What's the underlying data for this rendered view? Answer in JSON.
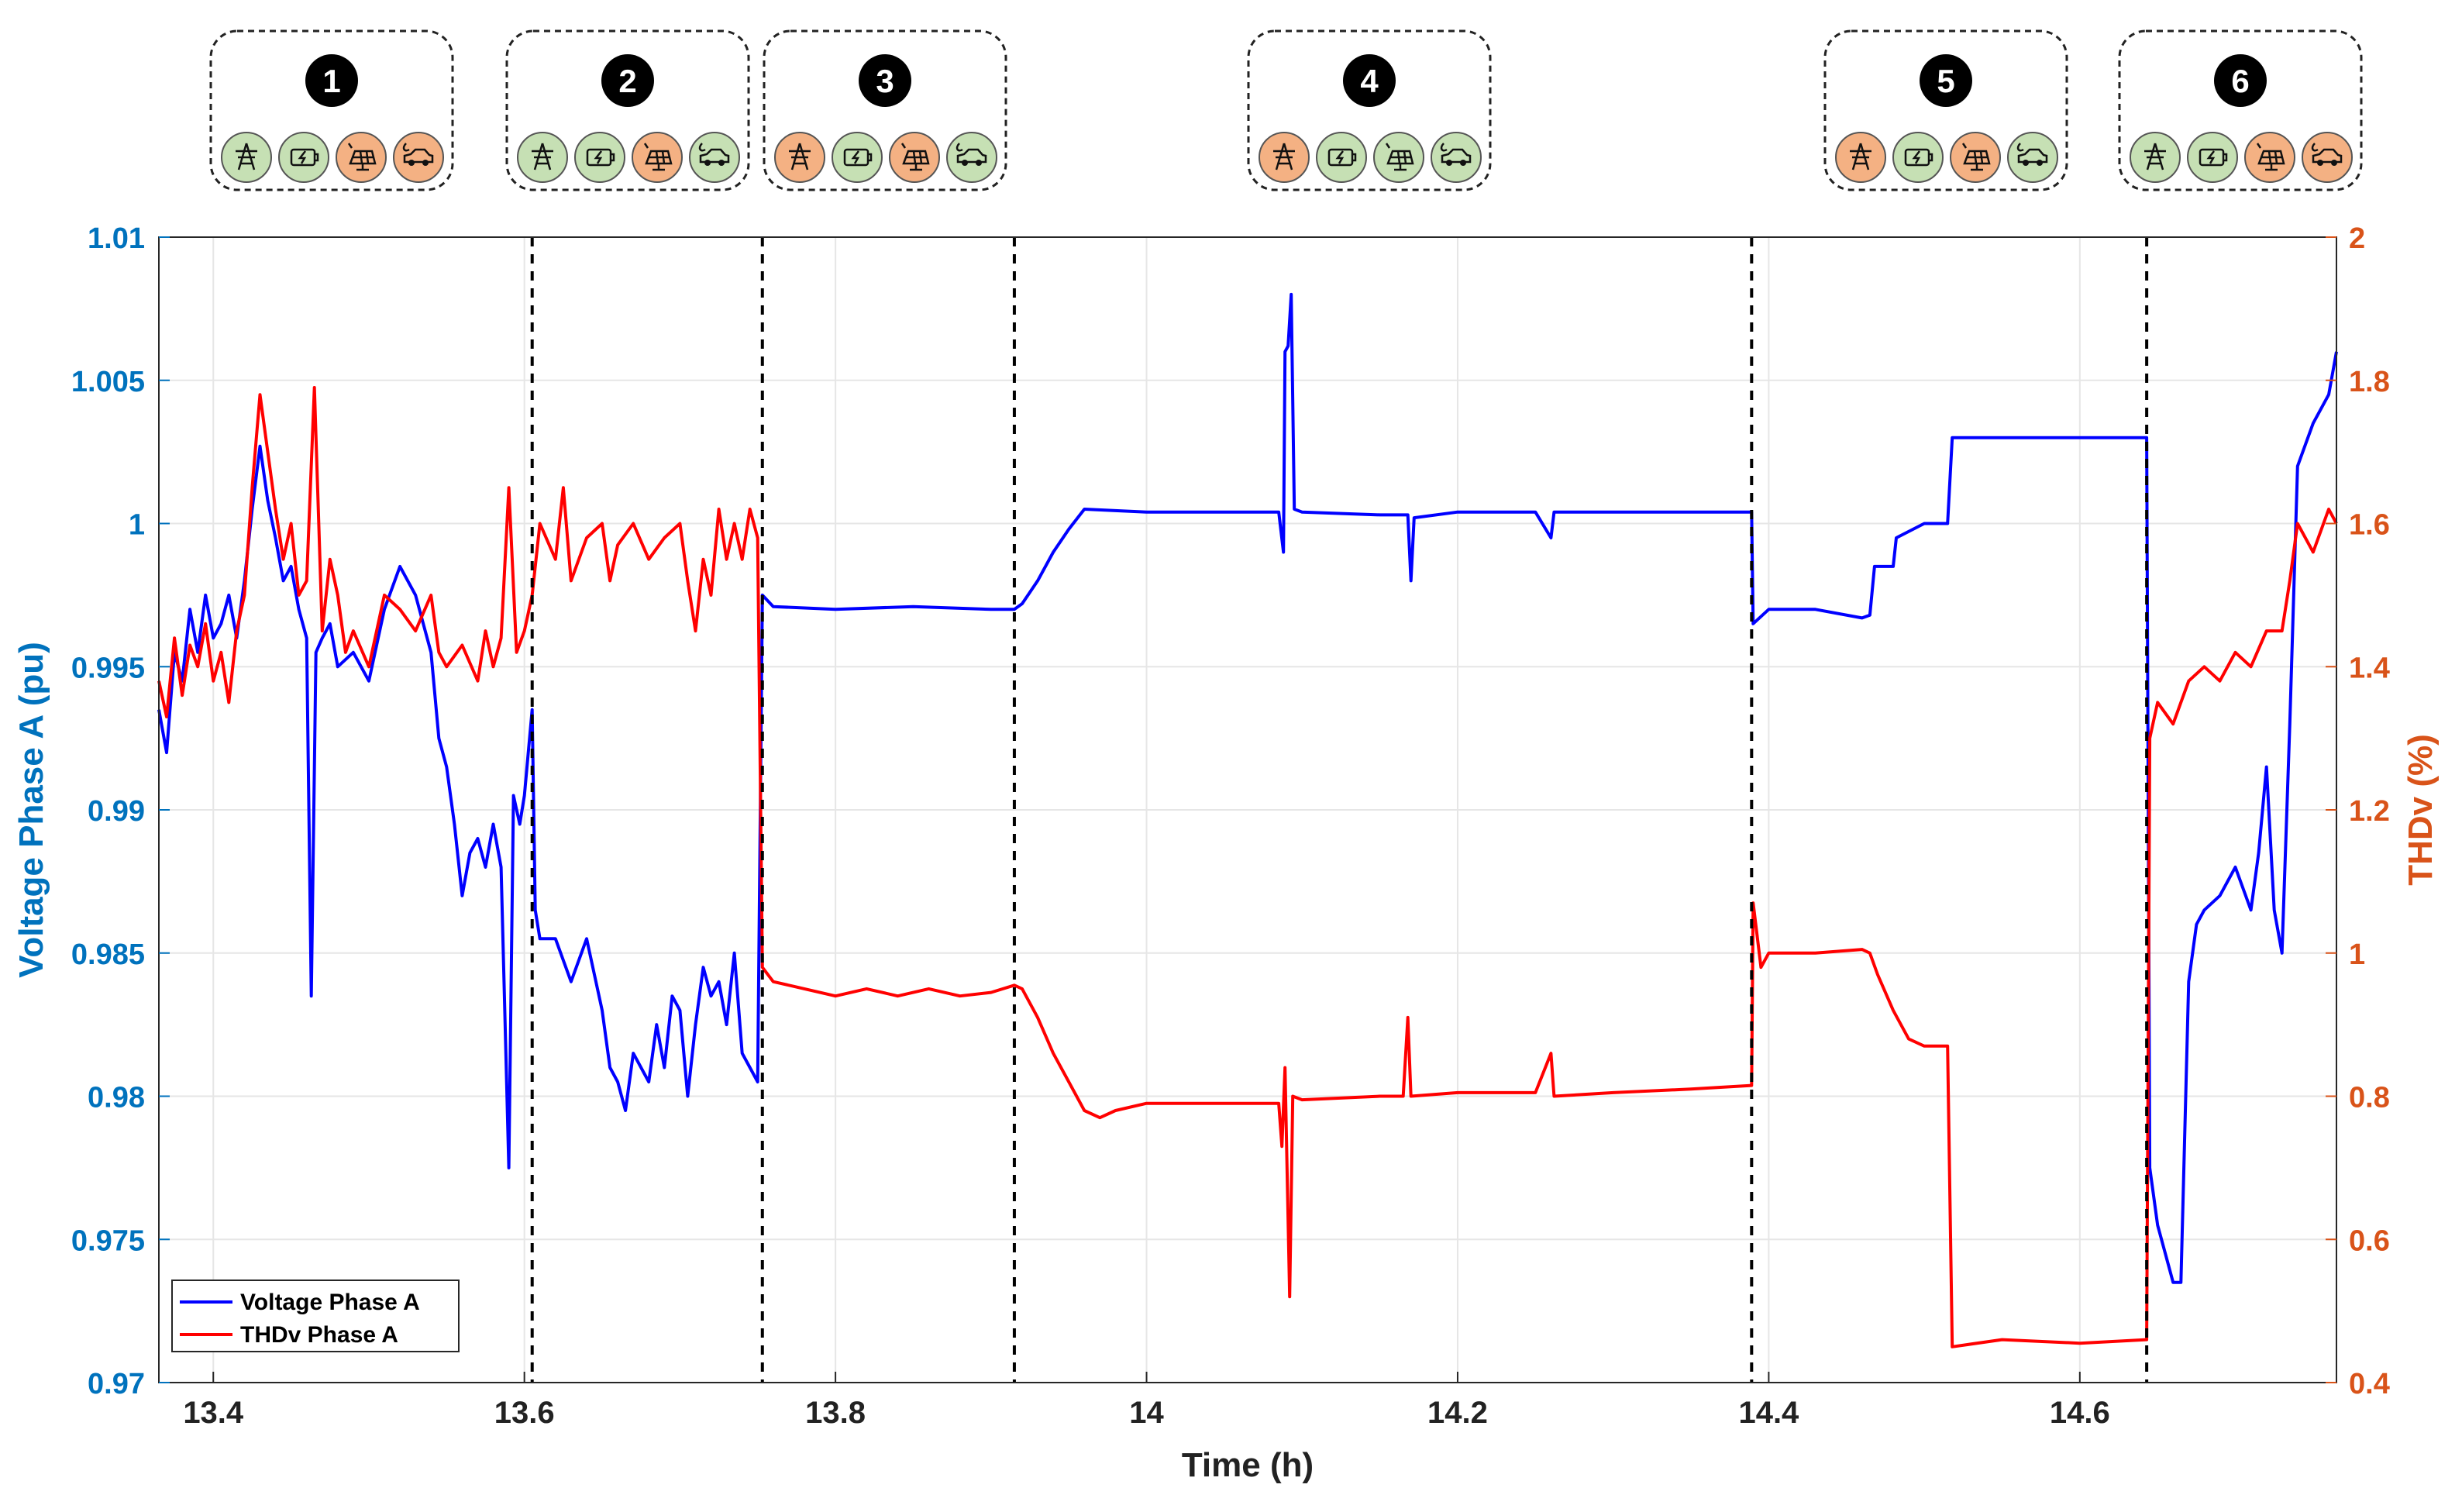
{
  "colors": {
    "voltage": "#0000ff",
    "thdv": "#ff0000",
    "left_axis": "#0072bd",
    "right_axis": "#d95319",
    "source_on": "#c6e0b4",
    "source_off": "#f4b183"
  },
  "scenarios": [
    {
      "number": "1",
      "grid": "on",
      "battery": "on",
      "pv": "off",
      "ev": "off"
    },
    {
      "number": "2",
      "grid": "on",
      "battery": "on",
      "pv": "off",
      "ev": "on"
    },
    {
      "number": "3",
      "grid": "off",
      "battery": "on",
      "pv": "off",
      "ev": "on"
    },
    {
      "number": "4",
      "grid": "off",
      "battery": "on",
      "pv": "on",
      "ev": "on"
    },
    {
      "number": "5",
      "grid": "off",
      "battery": "on",
      "pv": "off",
      "ev": "on"
    },
    {
      "number": "6",
      "grid": "on",
      "battery": "on",
      "pv": "off",
      "ev": "off"
    }
  ],
  "icons": [
    "transmission-tower-icon",
    "battery-charging-icon",
    "solar-panel-icon",
    "ev-charging-car-icon"
  ],
  "chart_data": {
    "type": "line",
    "title": "",
    "xlabel": "Time (h)",
    "ylabel_left": "Voltage Phase A (pu)",
    "ylabel_right": "THDv (%)",
    "xlim": [
      13.365,
      14.765
    ],
    "ylim_left": [
      0.97,
      1.01
    ],
    "ylim_right": [
      0.4,
      2.0
    ],
    "x_ticks": [
      "13.4",
      "13.6",
      "13.8",
      "14",
      "14.2",
      "14.4",
      "14.6"
    ],
    "y_ticks_left": [
      "0.97",
      "0.975",
      "0.98",
      "0.985",
      "0.99",
      "0.995",
      "1",
      "1.005",
      "1.01"
    ],
    "y_ticks_right": [
      "0.4",
      "0.6",
      "0.8",
      "1",
      "1.2",
      "1.4",
      "1.6",
      "1.8",
      "2"
    ],
    "grid": true,
    "legend_position": "bottom-left",
    "event_lines_x": [
      13.605,
      13.753,
      13.915,
      14.389,
      14.643
    ],
    "series": [
      {
        "name": "Voltage Phase A",
        "axis": "left",
        "points": [
          [
            13.365,
            0.9935
          ],
          [
            13.37,
            0.992
          ],
          [
            13.375,
            0.9955
          ],
          [
            13.38,
            0.9945
          ],
          [
            13.385,
            0.997
          ],
          [
            13.39,
            0.9955
          ],
          [
            13.395,
            0.9975
          ],
          [
            13.4,
            0.996
          ],
          [
            13.405,
            0.9965
          ],
          [
            13.41,
            0.9975
          ],
          [
            13.415,
            0.996
          ],
          [
            13.42,
            0.998
          ],
          [
            13.425,
            1.0005
          ],
          [
            13.43,
            1.0027
          ],
          [
            13.435,
            1.0008
          ],
          [
            13.44,
            0.9995
          ],
          [
            13.445,
            0.998
          ],
          [
            13.45,
            0.9985
          ],
          [
            13.455,
            0.997
          ],
          [
            13.46,
            0.996
          ],
          [
            13.463,
            0.9835
          ],
          [
            13.466,
            0.9955
          ],
          [
            13.47,
            0.996
          ],
          [
            13.475,
            0.9965
          ],
          [
            13.48,
            0.995
          ],
          [
            13.49,
            0.9955
          ],
          [
            13.5,
            0.9945
          ],
          [
            13.51,
            0.997
          ],
          [
            13.52,
            0.9985
          ],
          [
            13.53,
            0.9975
          ],
          [
            13.54,
            0.9955
          ],
          [
            13.545,
            0.9925
          ],
          [
            13.55,
            0.9915
          ],
          [
            13.555,
            0.9895
          ],
          [
            13.56,
            0.987
          ],
          [
            13.565,
            0.9885
          ],
          [
            13.57,
            0.989
          ],
          [
            13.575,
            0.988
          ],
          [
            13.58,
            0.9895
          ],
          [
            13.585,
            0.988
          ],
          [
            13.59,
            0.9775
          ],
          [
            13.593,
            0.9905
          ],
          [
            13.597,
            0.9895
          ],
          [
            13.6,
            0.9905
          ],
          [
            13.605,
            0.9935
          ],
          [
            13.607,
            0.9865
          ],
          [
            13.61,
            0.9855
          ],
          [
            13.62,
            0.9855
          ],
          [
            13.63,
            0.984
          ],
          [
            13.64,
            0.9855
          ],
          [
            13.65,
            0.983
          ],
          [
            13.655,
            0.981
          ],
          [
            13.66,
            0.9805
          ],
          [
            13.665,
            0.9795
          ],
          [
            13.67,
            0.9815
          ],
          [
            13.68,
            0.9805
          ],
          [
            13.685,
            0.9825
          ],
          [
            13.69,
            0.981
          ],
          [
            13.695,
            0.9835
          ],
          [
            13.7,
            0.983
          ],
          [
            13.705,
            0.98
          ],
          [
            13.71,
            0.9825
          ],
          [
            13.715,
            0.9845
          ],
          [
            13.72,
            0.9835
          ],
          [
            13.725,
            0.984
          ],
          [
            13.73,
            0.9825
          ],
          [
            13.735,
            0.985
          ],
          [
            13.74,
            0.9815
          ],
          [
            13.745,
            0.981
          ],
          [
            13.75,
            0.9805
          ],
          [
            13.753,
            0.9975
          ],
          [
            13.76,
            0.9971
          ],
          [
            13.8,
            0.997
          ],
          [
            13.85,
            0.9971
          ],
          [
            13.9,
            0.997
          ],
          [
            13.915,
            0.997
          ],
          [
            13.92,
            0.9972
          ],
          [
            13.93,
            0.998
          ],
          [
            13.94,
            0.999
          ],
          [
            13.95,
            0.9998
          ],
          [
            13.96,
            1.0005
          ],
          [
            14.0,
            1.0004
          ],
          [
            14.05,
            1.0004
          ],
          [
            14.085,
            1.0004
          ],
          [
            14.088,
            0.999
          ],
          [
            14.089,
            1.006
          ],
          [
            14.091,
            1.0062
          ],
          [
            14.093,
            1.008
          ],
          [
            14.095,
            1.0005
          ],
          [
            14.1,
            1.0004
          ],
          [
            14.15,
            1.0003
          ],
          [
            14.168,
            1.0003
          ],
          [
            14.17,
            0.998
          ],
          [
            14.172,
            1.0002
          ],
          [
            14.2,
            1.0004
          ],
          [
            14.25,
            1.0004
          ],
          [
            14.26,
            0.9995
          ],
          [
            14.262,
            1.0004
          ],
          [
            14.3,
            1.0004
          ],
          [
            14.35,
            1.0004
          ],
          [
            14.389,
            1.0004
          ],
          [
            14.39,
            0.9965
          ],
          [
            14.4,
            0.997
          ],
          [
            14.43,
            0.997
          ],
          [
            14.46,
            0.9967
          ],
          [
            14.465,
            0.9968
          ],
          [
            14.468,
            0.9985
          ],
          [
            14.48,
            0.9985
          ],
          [
            14.482,
            0.9995
          ],
          [
            14.5,
            1.0
          ],
          [
            14.515,
            1.0
          ],
          [
            14.518,
            1.003
          ],
          [
            14.55,
            1.003
          ],
          [
            14.6,
            1.003
          ],
          [
            14.643,
            1.003
          ],
          [
            14.645,
            0.9775
          ],
          [
            14.65,
            0.9755
          ],
          [
            14.655,
            0.9745
          ],
          [
            14.66,
            0.9735
          ],
          [
            14.665,
            0.9735
          ],
          [
            14.67,
            0.984
          ],
          [
            14.675,
            0.986
          ],
          [
            14.68,
            0.9865
          ],
          [
            14.69,
            0.987
          ],
          [
            14.7,
            0.988
          ],
          [
            14.71,
            0.9865
          ],
          [
            14.715,
            0.9885
          ],
          [
            14.72,
            0.9915
          ],
          [
            14.725,
            0.9865
          ],
          [
            14.73,
            0.985
          ],
          [
            14.735,
            0.993
          ],
          [
            14.74,
            1.002
          ],
          [
            14.75,
            1.0035
          ],
          [
            14.76,
            1.0045
          ],
          [
            14.765,
            1.006
          ]
        ]
      },
      {
        "name": "THDv Phase A",
        "axis": "right",
        "points": [
          [
            13.365,
            1.38
          ],
          [
            13.37,
            1.33
          ],
          [
            13.375,
            1.44
          ],
          [
            13.38,
            1.36
          ],
          [
            13.385,
            1.43
          ],
          [
            13.39,
            1.4
          ],
          [
            13.395,
            1.46
          ],
          [
            13.4,
            1.38
          ],
          [
            13.405,
            1.42
          ],
          [
            13.41,
            1.35
          ],
          [
            13.415,
            1.45
          ],
          [
            13.42,
            1.5
          ],
          [
            13.425,
            1.65
          ],
          [
            13.43,
            1.78
          ],
          [
            13.435,
            1.7
          ],
          [
            13.44,
            1.62
          ],
          [
            13.445,
            1.55
          ],
          [
            13.45,
            1.6
          ],
          [
            13.455,
            1.5
          ],
          [
            13.46,
            1.52
          ],
          [
            13.465,
            1.79
          ],
          [
            13.47,
            1.45
          ],
          [
            13.475,
            1.55
          ],
          [
            13.48,
            1.5
          ],
          [
            13.485,
            1.42
          ],
          [
            13.49,
            1.45
          ],
          [
            13.5,
            1.4
          ],
          [
            13.51,
            1.5
          ],
          [
            13.52,
            1.48
          ],
          [
            13.53,
            1.45
          ],
          [
            13.54,
            1.5
          ],
          [
            13.545,
            1.42
          ],
          [
            13.55,
            1.4
          ],
          [
            13.56,
            1.43
          ],
          [
            13.57,
            1.38
          ],
          [
            13.575,
            1.45
          ],
          [
            13.58,
            1.4
          ],
          [
            13.585,
            1.44
          ],
          [
            13.59,
            1.65
          ],
          [
            13.595,
            1.42
          ],
          [
            13.6,
            1.45
          ],
          [
            13.605,
            1.5
          ],
          [
            13.61,
            1.6
          ],
          [
            13.62,
            1.55
          ],
          [
            13.625,
            1.65
          ],
          [
            13.63,
            1.52
          ],
          [
            13.64,
            1.58
          ],
          [
            13.65,
            1.6
          ],
          [
            13.655,
            1.52
          ],
          [
            13.66,
            1.57
          ],
          [
            13.67,
            1.6
          ],
          [
            13.68,
            1.55
          ],
          [
            13.69,
            1.58
          ],
          [
            13.7,
            1.6
          ],
          [
            13.705,
            1.52
          ],
          [
            13.71,
            1.45
          ],
          [
            13.715,
            1.55
          ],
          [
            13.72,
            1.5
          ],
          [
            13.725,
            1.62
          ],
          [
            13.73,
            1.55
          ],
          [
            13.735,
            1.6
          ],
          [
            13.74,
            1.55
          ],
          [
            13.745,
            1.62
          ],
          [
            13.75,
            1.58
          ],
          [
            13.753,
            0.98
          ],
          [
            13.76,
            0.96
          ],
          [
            13.78,
            0.95
          ],
          [
            13.8,
            0.94
          ],
          [
            13.82,
            0.95
          ],
          [
            13.84,
            0.94
          ],
          [
            13.86,
            0.95
          ],
          [
            13.88,
            0.94
          ],
          [
            13.9,
            0.945
          ],
          [
            13.915,
            0.955
          ],
          [
            13.92,
            0.95
          ],
          [
            13.93,
            0.91
          ],
          [
            13.94,
            0.86
          ],
          [
            13.95,
            0.82
          ],
          [
            13.96,
            0.78
          ],
          [
            13.97,
            0.77
          ],
          [
            13.98,
            0.78
          ],
          [
            14.0,
            0.79
          ],
          [
            14.05,
            0.79
          ],
          [
            14.085,
            0.79
          ],
          [
            14.087,
            0.73
          ],
          [
            14.089,
            0.84
          ],
          [
            14.092,
            0.52
          ],
          [
            14.094,
            0.8
          ],
          [
            14.1,
            0.795
          ],
          [
            14.15,
            0.8
          ],
          [
            14.165,
            0.8
          ],
          [
            14.168,
            0.91
          ],
          [
            14.17,
            0.8
          ],
          [
            14.2,
            0.805
          ],
          [
            14.25,
            0.805
          ],
          [
            14.26,
            0.86
          ],
          [
            14.262,
            0.8
          ],
          [
            14.3,
            0.805
          ],
          [
            14.35,
            0.81
          ],
          [
            14.389,
            0.815
          ],
          [
            14.39,
            1.07
          ],
          [
            14.395,
            0.98
          ],
          [
            14.4,
            1.0
          ],
          [
            14.43,
            1.0
          ],
          [
            14.46,
            1.005
          ],
          [
            14.465,
            1.0
          ],
          [
            14.47,
            0.97
          ],
          [
            14.48,
            0.92
          ],
          [
            14.49,
            0.88
          ],
          [
            14.5,
            0.87
          ],
          [
            14.515,
            0.87
          ],
          [
            14.518,
            0.45
          ],
          [
            14.55,
            0.46
          ],
          [
            14.6,
            0.455
          ],
          [
            14.643,
            0.46
          ],
          [
            14.645,
            1.3
          ],
          [
            14.65,
            1.35
          ],
          [
            14.66,
            1.32
          ],
          [
            14.67,
            1.38
          ],
          [
            14.68,
            1.4
          ],
          [
            14.69,
            1.38
          ],
          [
            14.7,
            1.42
          ],
          [
            14.71,
            1.4
          ],
          [
            14.72,
            1.45
          ],
          [
            14.73,
            1.45
          ],
          [
            14.735,
            1.52
          ],
          [
            14.74,
            1.6
          ],
          [
            14.75,
            1.56
          ],
          [
            14.76,
            1.62
          ],
          [
            14.765,
            1.6
          ]
        ]
      }
    ]
  }
}
